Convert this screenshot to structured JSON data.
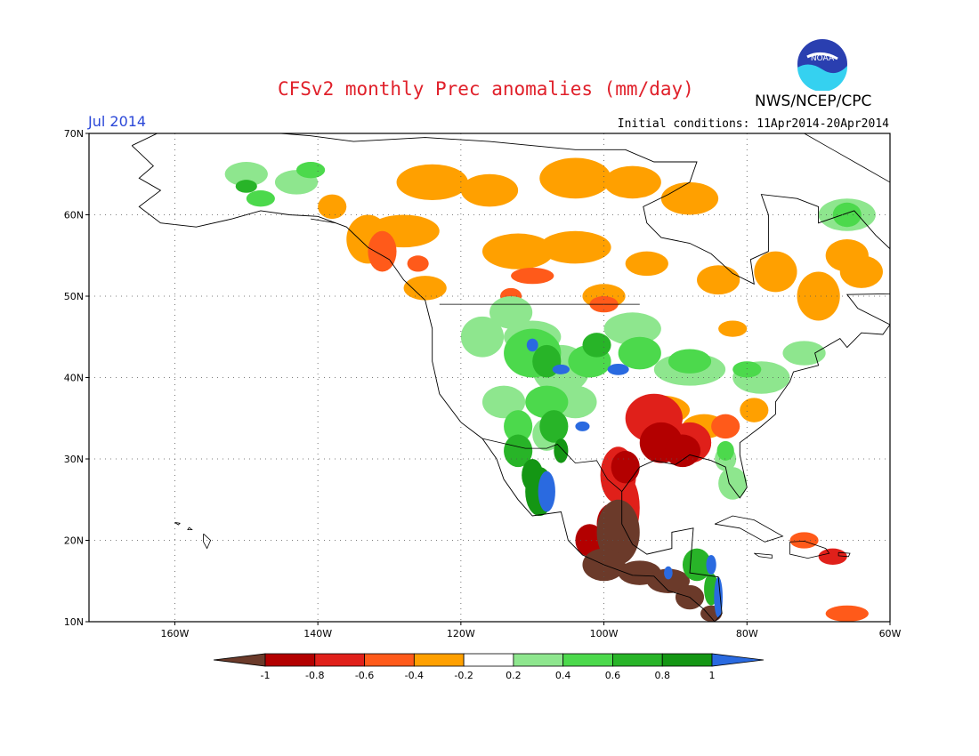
{
  "header": {
    "title": "CFSv2 monthly Prec anomalies (mm/day)",
    "agency": "NWS/NCEP/CPC",
    "month": "Jul 2014",
    "initial_conditions": "Initial conditions: 11Apr2014-20Apr2014",
    "logo_text": "NOAA"
  },
  "map": {
    "lon_range": [
      -172,
      -60
    ],
    "lat_range": [
      10,
      70
    ],
    "lat_ticks": [
      "70N",
      "60N",
      "50N",
      "40N",
      "30N",
      "20N",
      "10N"
    ],
    "lon_ticks": [
      "160W",
      "140W",
      "120W",
      "100W",
      "80W",
      "60W"
    ],
    "grid": "dotted"
  },
  "colorbar": {
    "labels": [
      "-1",
      "-0.8",
      "-0.6",
      "-0.4",
      "-0.2",
      "0.2",
      "0.4",
      "0.6",
      "0.8",
      "1"
    ],
    "colors": [
      "#6b3a2a",
      "#b30000",
      "#e0201a",
      "#ff5a1a",
      "#ffa000",
      "#ffffff",
      "#8ee68e",
      "#4cd94c",
      "#28b428",
      "#149614",
      "#2a6ae0"
    ]
  }
}
